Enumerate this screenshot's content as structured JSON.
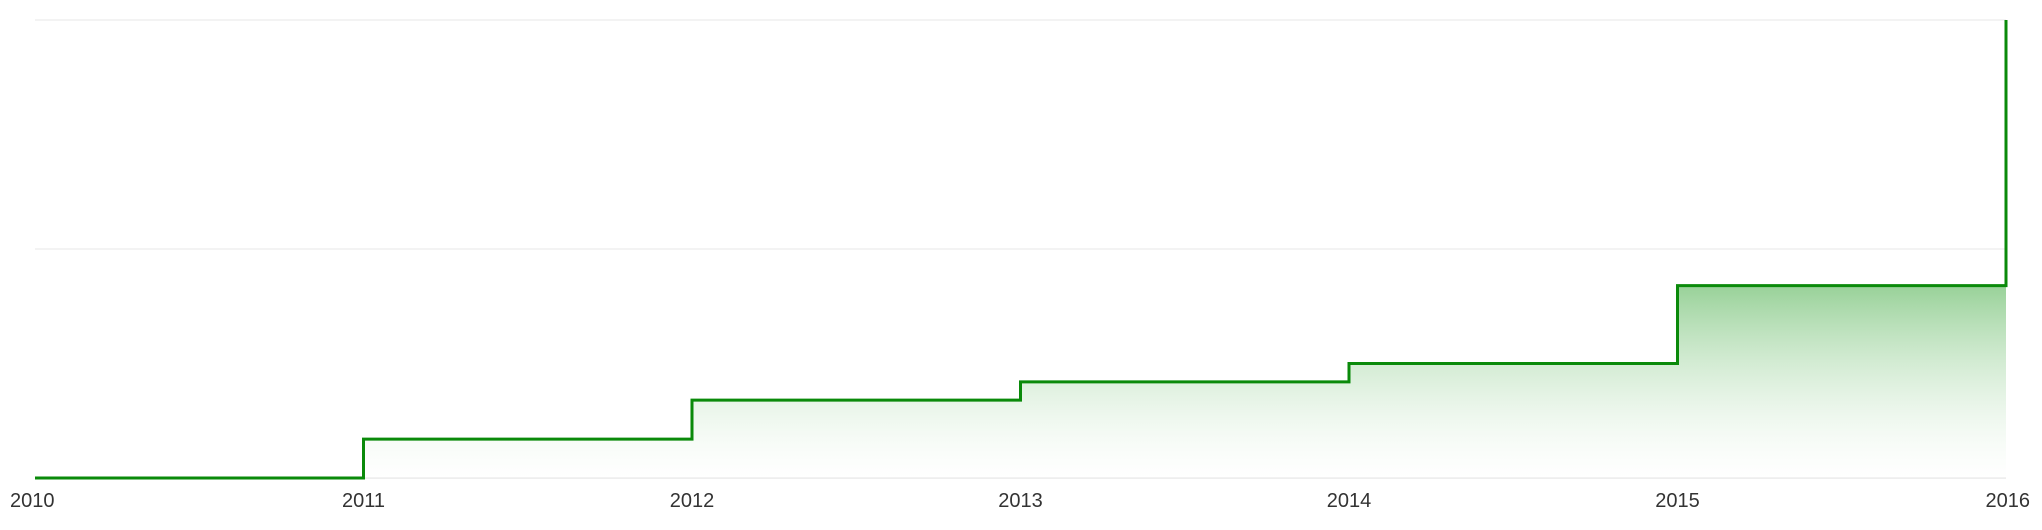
{
  "chart_data": {
    "type": "area",
    "step": "after",
    "x": [
      2010,
      2011,
      2012,
      2013,
      2014,
      2015,
      2016
    ],
    "x_tick_labels": [
      "2010",
      "2011",
      "2012",
      "2013",
      "2014",
      "2015",
      "2016"
    ],
    "values": [
      0,
      0.17,
      0.34,
      0.42,
      0.5,
      0.84,
      2
    ],
    "xlim": [
      2010,
      2016
    ],
    "ylim": [
      0,
      2
    ],
    "y_gridlines": [
      1,
      2
    ],
    "y_tick_labels_visible": false,
    "grid": true,
    "legend": "none",
    "title": "",
    "xlabel": "",
    "ylabel": "",
    "colors": {
      "line": "#0a8a0a",
      "fill_top": "#86c986",
      "fill_bottom": "#ffffff",
      "grid": "#ececec",
      "tick_text": "#333333"
    }
  }
}
